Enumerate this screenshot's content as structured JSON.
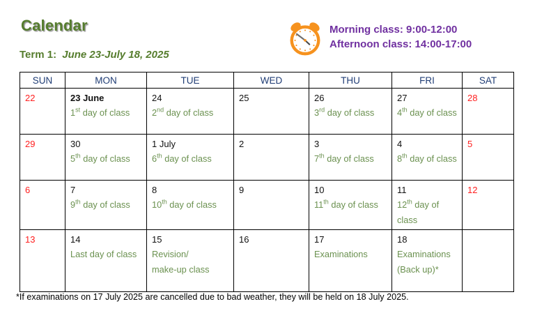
{
  "page": {
    "title": "Calendar",
    "term_label": "Term 1:",
    "term_dates": "June 23-July 18, 2025",
    "footnote": "*If examinations on 17 July 2025 are cancelled due to bad weather, they will be held on 18 July 2025."
  },
  "schedule": {
    "clock_icon": "alarm-clock-icon",
    "morning": "Morning class: 9:00-12:00",
    "afternoon": "Afternoon class: 14:00-17:00"
  },
  "colors": {
    "title_green": "#567D2E",
    "class_green": "#6B9150",
    "header_navy": "#203D75",
    "weekend_red": "#FF1F1F",
    "purple": "#7030A0",
    "clock_orange": "#F6921E"
  },
  "calendar": {
    "weekdays": [
      "SUN",
      "MON",
      "TUE",
      "WED",
      "THU",
      "FRI",
      "SAT"
    ],
    "weeks": [
      [
        {
          "day": "22",
          "red": true
        },
        {
          "day": "23 June",
          "bold": true,
          "lines": [
            {
              "pre": "1",
              "sup": "st",
              "post": " day of class"
            }
          ]
        },
        {
          "day": "24",
          "lines": [
            {
              "pre": "2",
              "sup": "nd",
              "post": " day of class"
            }
          ]
        },
        {
          "day": "25"
        },
        {
          "day": "26",
          "lines": [
            {
              "pre": "3",
              "sup": "rd",
              "post": " day of class"
            }
          ]
        },
        {
          "day": "27",
          "lines": [
            {
              "pre": "4",
              "sup": "th",
              "post": " day of class"
            }
          ]
        },
        {
          "day": "28",
          "red": true
        }
      ],
      [
        {
          "day": "29",
          "red": true
        },
        {
          "day": "30",
          "lines": [
            {
              "pre": "5",
              "sup": "th",
              "post": " day of class"
            }
          ]
        },
        {
          "day": "1 July",
          "lines": [
            {
              "pre": "6",
              "sup": "th",
              "post": " day of class"
            }
          ]
        },
        {
          "day": "2"
        },
        {
          "day": "3",
          "lines": [
            {
              "pre": "7",
              "sup": "th",
              "post": " day of class"
            }
          ]
        },
        {
          "day": "4",
          "lines": [
            {
              "pre": "8",
              "sup": "th",
              "post": " day of class"
            }
          ]
        },
        {
          "day": "5",
          "red": true
        }
      ],
      [
        {
          "day": "6",
          "red": true
        },
        {
          "day": "7",
          "lines": [
            {
              "pre": "9",
              "sup": "th",
              "post": " day of class"
            }
          ]
        },
        {
          "day": "8",
          "lines": [
            {
              "pre": "10",
              "sup": "th",
              "post": " day of class"
            }
          ]
        },
        {
          "day": "9"
        },
        {
          "day": "10",
          "lines": [
            {
              "pre": "11",
              "sup": "th",
              "post": " day of class"
            }
          ]
        },
        {
          "day": "11",
          "lines": [
            {
              "pre": "12",
              "sup": "th",
              "post": " day of class"
            }
          ]
        },
        {
          "day": "12",
          "red": true
        }
      ],
      [
        {
          "day": "13",
          "red": true
        },
        {
          "day": "14",
          "lines": [
            {
              "pre": "Last day of class"
            }
          ]
        },
        {
          "day": "15",
          "lines": [
            {
              "pre": "Revision/"
            },
            {
              "pre": "make-up class"
            }
          ]
        },
        {
          "day": "16"
        },
        {
          "day": "17",
          "lines": [
            {
              "pre": "Examinations"
            }
          ]
        },
        {
          "day": "18",
          "lines": [
            {
              "pre": "Examinations"
            },
            {
              "pre": "(Back up)*"
            }
          ]
        },
        {
          "day": ""
        }
      ]
    ]
  }
}
